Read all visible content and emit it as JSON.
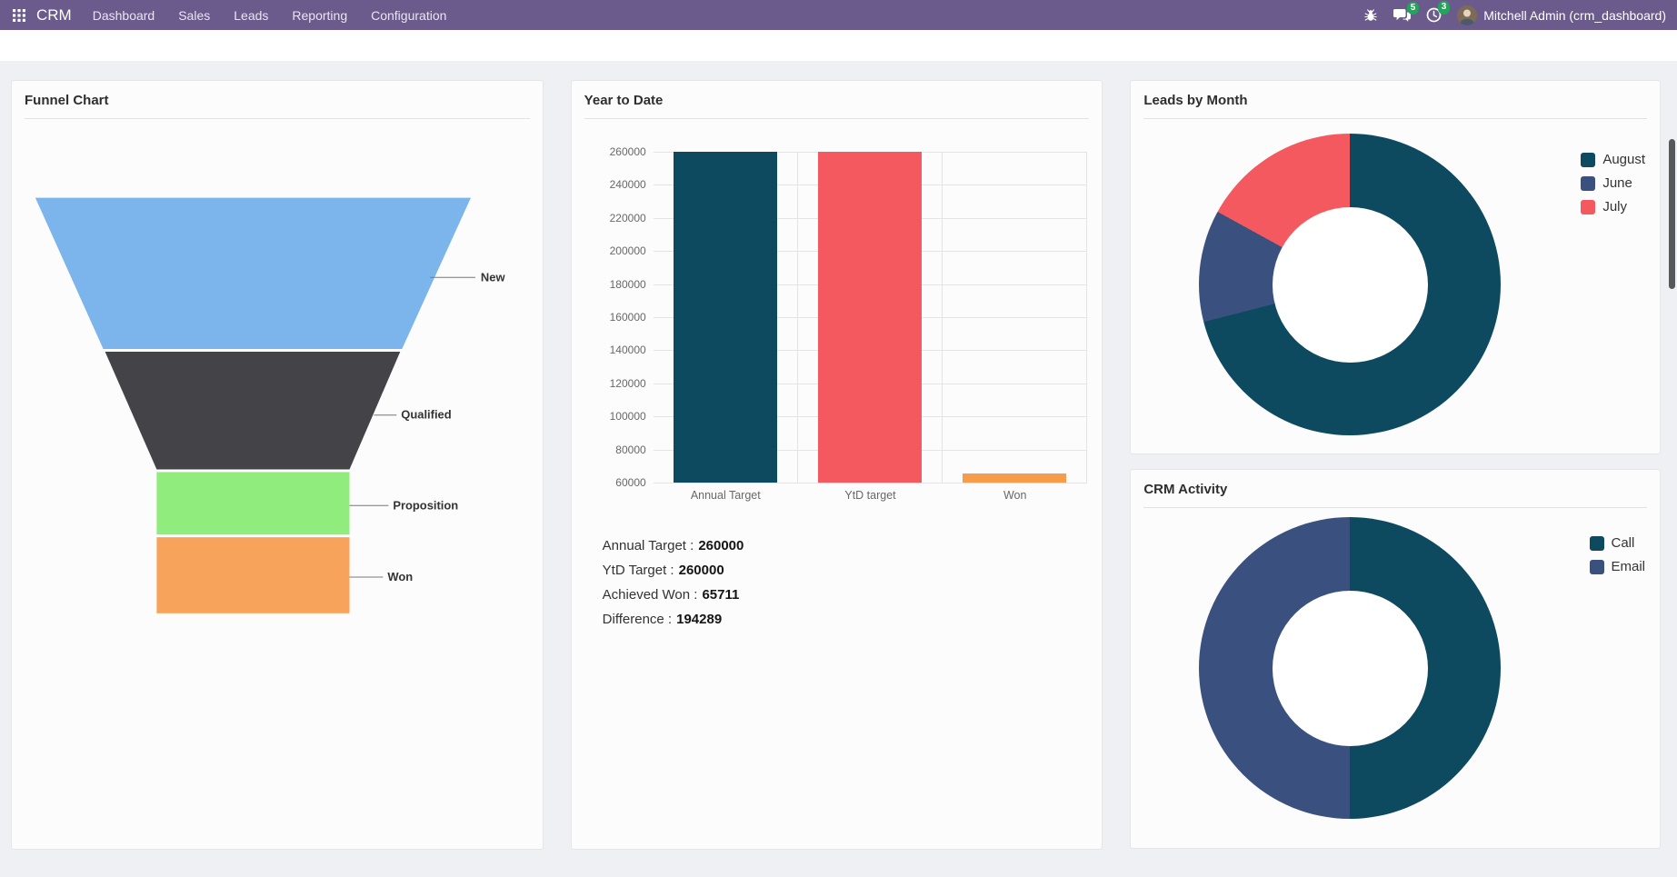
{
  "navbar": {
    "app_name": "CRM",
    "menu": [
      "Dashboard",
      "Sales",
      "Leads",
      "Reporting",
      "Configuration"
    ],
    "messages_badge": "5",
    "activities_badge": "3",
    "user_name": "Mitchell Admin (crm_dashboard)",
    "color": "#6b5a8c"
  },
  "cards": {
    "funnel": {
      "title": "Funnel Chart"
    },
    "ytd": {
      "title": "Year to Date",
      "summary": [
        {
          "label": "Annual Target :",
          "value": "260000"
        },
        {
          "label": "YtD Target :",
          "value": "260000"
        },
        {
          "label": "Achieved Won :",
          "value": "65711"
        },
        {
          "label": "Difference :",
          "value": "194289"
        }
      ]
    },
    "leads_by_month": {
      "title": "Leads by Month"
    },
    "crm_activity": {
      "title": "CRM Activity"
    }
  },
  "chart_data": [
    {
      "id": "funnel",
      "type": "funnel",
      "title": "Funnel Chart",
      "stages": [
        "New",
        "Qualified",
        "Proposition",
        "Won"
      ],
      "colors": [
        "#7cb5ec",
        "#434348",
        "#90ed7d",
        "#f7a35c"
      ],
      "labels_position": "right"
    },
    {
      "id": "ytd_bar",
      "type": "bar",
      "title": "Year to Date",
      "categories": [
        "Annual Target",
        "YtD target",
        "Won"
      ],
      "values": [
        260000,
        260000,
        65711
      ],
      "colors": [
        "#0e4a5f",
        "#f4595f",
        "#f79c4a"
      ],
      "ylim": [
        60000,
        260000
      ],
      "yticks": [
        260000,
        240000,
        220000,
        200000,
        180000,
        160000,
        140000,
        120000,
        100000,
        80000,
        60000
      ],
      "grid": true,
      "legend": "none"
    },
    {
      "id": "leads_donut",
      "type": "pie",
      "title": "Leads by Month",
      "labels": [
        "August",
        "June",
        "July"
      ],
      "values": [
        71,
        12,
        17
      ],
      "unit": "percent_estimate",
      "colors": [
        "#0e4a5f",
        "#3a5180",
        "#f4595f"
      ],
      "hole": 0.515,
      "legend_position": "top-right"
    },
    {
      "id": "activity_donut",
      "type": "pie",
      "title": "CRM Activity",
      "labels": [
        "Call",
        "Email"
      ],
      "values": [
        50,
        50
      ],
      "unit": "percent_estimate",
      "colors": [
        "#0e4a5f",
        "#3a5180"
      ],
      "hole": 0.515,
      "legend_position": "top-right"
    }
  ]
}
